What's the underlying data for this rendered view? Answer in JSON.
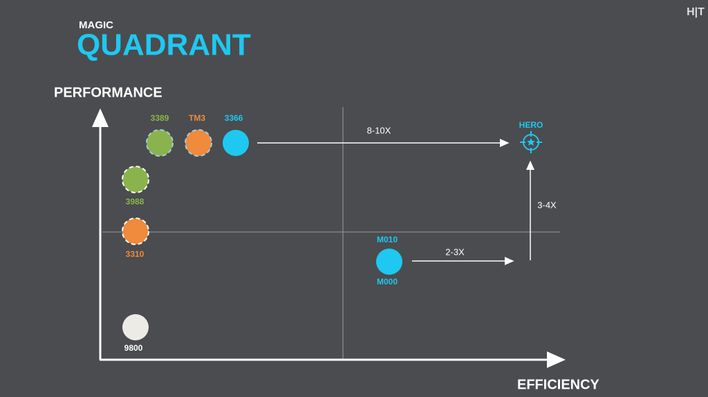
{
  "logo": "H|T",
  "header": {
    "kicker": "MAGIC",
    "title": "QUADRANT"
  },
  "axes": {
    "y": "PERFORMANCE",
    "x": "EFFICIENCY"
  },
  "nodes": [
    {
      "label": "3389"
    },
    {
      "label": "TM3"
    },
    {
      "label": "3366"
    },
    {
      "label": "3988"
    },
    {
      "label": "3310"
    },
    {
      "label": "9800"
    },
    {
      "label": "M010"
    },
    {
      "label": "M000"
    },
    {
      "label": "HERO"
    }
  ],
  "arrows": [
    {
      "label": "8-10X"
    },
    {
      "label": "2-3X"
    },
    {
      "label": "3-4X"
    }
  ]
}
